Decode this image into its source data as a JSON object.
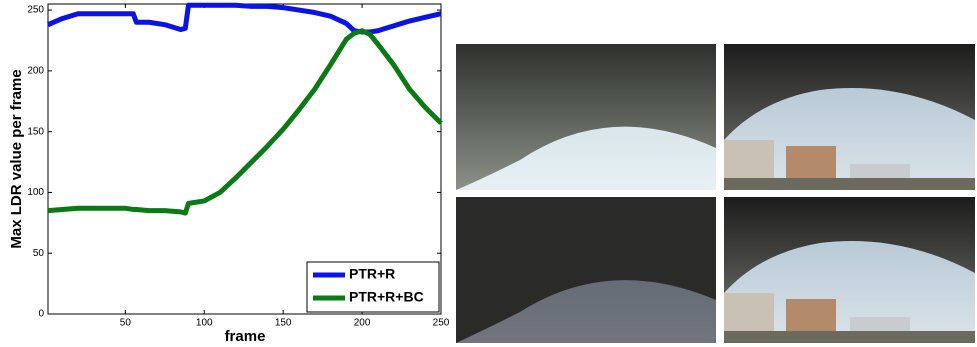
{
  "chart_data": {
    "type": "line",
    "x_label": "frame",
    "y_label": "Max LDR value per frame",
    "x": [
      1,
      10,
      20,
      30,
      40,
      50,
      55,
      57,
      65,
      75,
      85,
      88,
      90,
      100,
      110,
      120,
      130,
      140,
      150,
      160,
      170,
      180,
      190,
      195,
      200,
      205,
      210,
      220,
      225,
      230,
      240,
      250
    ],
    "series": [
      {
        "name": "PTR+R",
        "color": "#0a14e6",
        "values": [
          238,
          243,
          247,
          247,
          247,
          247,
          247,
          240,
          240,
          238,
          234,
          235,
          254,
          254,
          254,
          254,
          253,
          253,
          252,
          250,
          248,
          245,
          239,
          233,
          232,
          232,
          233,
          237,
          239,
          241,
          244,
          247
        ]
      },
      {
        "name": "PTR+R+BC",
        "color": "#0a7a14",
        "values": [
          85,
          86,
          87,
          87,
          87,
          87,
          86,
          86,
          85,
          85,
          84,
          83,
          91,
          93,
          100,
          112,
          125,
          138,
          152,
          168,
          185,
          205,
          226,
          231,
          233,
          230,
          222,
          205,
          195,
          185,
          170,
          157
        ]
      }
    ],
    "xlim": [
      1,
      250
    ],
    "ylim": [
      0,
      255
    ],
    "xticks": [
      50,
      100,
      150,
      200,
      250
    ],
    "yticks": [
      0,
      50,
      100,
      150,
      200,
      250
    ],
    "legend": "lower right"
  }
}
